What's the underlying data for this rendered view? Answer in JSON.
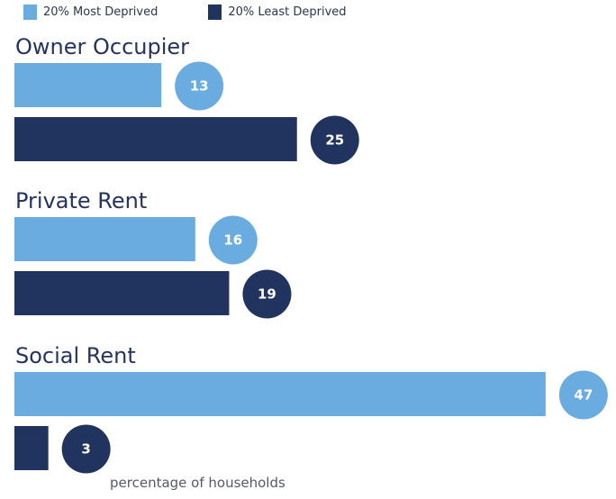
{
  "chart_data": {
    "type": "bar",
    "orientation": "horizontal",
    "categories": [
      "Owner Occupier",
      "Private Rent",
      "Social Rent"
    ],
    "series": [
      {
        "name": "20% Most Deprived",
        "color": "#6aace0",
        "values": [
          13,
          16,
          47
        ]
      },
      {
        "name": "20% Least Deprived",
        "color": "#21335f",
        "values": [
          25,
          19,
          3
        ]
      }
    ],
    "xlabel": "percentage of households",
    "ylabel": "",
    "xlim": [
      0,
      50
    ],
    "legend_position": "top-left",
    "grid": false,
    "data_labels": "circle badges at bar ends"
  }
}
